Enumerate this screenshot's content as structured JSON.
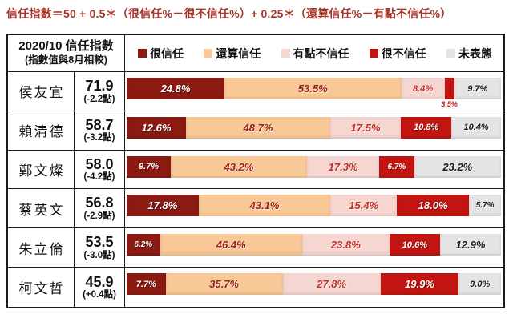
{
  "title": "信任指數＝50 + 0.5＊（很信任%－很不信任%）+ 0.25＊（還算信任%－有點不信任%）",
  "table_header": {
    "line1": "2020/10 信任指數",
    "line2": "(指數值與8月相較)"
  },
  "chart_data": {
    "type": "bar",
    "stacked": true,
    "orientation": "horizontal",
    "value_unit": "%",
    "axis": "each row is a 100% stacked bar",
    "legend_position": "top",
    "series": [
      {
        "name": "很信任",
        "color": "#8B1A12",
        "label_color": "#FFFFFF"
      },
      {
        "name": "還算信任",
        "color": "#F8C896",
        "label_color": "#9B2018"
      },
      {
        "name": "有點不信任",
        "color": "#F6D6D1",
        "label_color": "#C13028"
      },
      {
        "name": "很不信任",
        "color": "#C21511",
        "label_color": "#FFFFFF"
      },
      {
        "name": "未表態",
        "color": "#E4E4E4",
        "label_color": "#1A1A1A"
      }
    ],
    "rows": [
      {
        "name": "侯友宜",
        "index": "71.9",
        "change": "(-2.2點)",
        "values": [
          24.8,
          53.5,
          8.4,
          3.5,
          9.7
        ]
      },
      {
        "name": "賴清德",
        "index": "58.7",
        "change": "(-3.2點)",
        "values": [
          12.6,
          48.7,
          17.5,
          10.8,
          10.4
        ]
      },
      {
        "name": "鄭文燦",
        "index": "58.0",
        "change": "(-4.2點)",
        "values": [
          9.7,
          43.2,
          17.3,
          6.7,
          23.2
        ]
      },
      {
        "name": "蔡英文",
        "index": "56.8",
        "change": "(-2.9點)",
        "values": [
          17.8,
          43.1,
          15.4,
          18.0,
          5.7
        ]
      },
      {
        "name": "朱立倫",
        "index": "53.5",
        "change": "(-3.0點)",
        "values": [
          6.2,
          46.4,
          23.8,
          10.6,
          12.9
        ]
      },
      {
        "name": "柯文哲",
        "index": "45.9",
        "change": "(+0.4點)",
        "values": [
          7.7,
          35.7,
          27.8,
          19.9,
          9.0
        ]
      }
    ]
  }
}
